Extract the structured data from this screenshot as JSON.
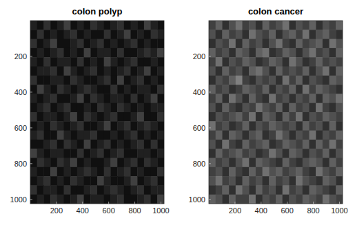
{
  "chart_data": [
    {
      "type": "heatmap",
      "title": "colon polyp",
      "color": "#ffffff",
      "grid": false,
      "xlim": [
        0,
        1024
      ],
      "ylim": [
        0,
        1024
      ],
      "xticks": [
        200,
        400,
        600,
        800,
        1000
      ],
      "yticks": [
        200,
        400,
        600,
        800,
        1000
      ],
      "value_range": [
        0,
        16
      ],
      "cells": [
        [
          2,
          1,
          3,
          1,
          2,
          4,
          1,
          2,
          1,
          3,
          2,
          1,
          2,
          3,
          1,
          2,
          1,
          4,
          2,
          1
        ],
        [
          1,
          3,
          1,
          2,
          1,
          2,
          3,
          1,
          2,
          1,
          1,
          3,
          1,
          2,
          4,
          1,
          2,
          1,
          3,
          2
        ],
        [
          3,
          1,
          2,
          4,
          1,
          1,
          2,
          3,
          1,
          2,
          3,
          1,
          2,
          1,
          2,
          3,
          1,
          2,
          1,
          1
        ],
        [
          1,
          2,
          1,
          2,
          3,
          1,
          2,
          1,
          4,
          1,
          2,
          2,
          1,
          3,
          1,
          1,
          2,
          3,
          2,
          4
        ],
        [
          2,
          1,
          3,
          1,
          2,
          2,
          1,
          3,
          1,
          2,
          1,
          4,
          2,
          1,
          2,
          3,
          1,
          1,
          2,
          1
        ],
        [
          1,
          2,
          2,
          3,
          1,
          4,
          2,
          1,
          2,
          3,
          1,
          2,
          1,
          2,
          3,
          1,
          2,
          4,
          1,
          2
        ],
        [
          3,
          1,
          1,
          2,
          2,
          1,
          3,
          2,
          1,
          1,
          2,
          3,
          1,
          4,
          1,
          2,
          3,
          1,
          2,
          1
        ],
        [
          1,
          4,
          2,
          1,
          3,
          2,
          1,
          2,
          3,
          2,
          1,
          1,
          3,
          1,
          2,
          1,
          2,
          2,
          1,
          3
        ],
        [
          2,
          1,
          2,
          3,
          1,
          1,
          2,
          4,
          1,
          3,
          2,
          1,
          2,
          2,
          1,
          3,
          1,
          2,
          4,
          1
        ],
        [
          1,
          2,
          3,
          1,
          2,
          3,
          1,
          1,
          2,
          1,
          3,
          2,
          1,
          3,
          2,
          1,
          2,
          1,
          2,
          2
        ],
        [
          3,
          1,
          2,
          2,
          1,
          2,
          4,
          1,
          3,
          2,
          1,
          2,
          3,
          1,
          1,
          2,
          4,
          1,
          1,
          3
        ],
        [
          1,
          2,
          1,
          3,
          2,
          1,
          2,
          3,
          1,
          1,
          2,
          4,
          1,
          2,
          3,
          1,
          2,
          3,
          2,
          1
        ],
        [
          2,
          3,
          1,
          1,
          4,
          2,
          1,
          2,
          2,
          3,
          1,
          1,
          2,
          1,
          2,
          3,
          1,
          2,
          1,
          2
        ],
        [
          1,
          1,
          2,
          3,
          1,
          3,
          2,
          1,
          4,
          1,
          2,
          3,
          1,
          2,
          1,
          2,
          3,
          1,
          3,
          1
        ],
        [
          4,
          2,
          1,
          2,
          2,
          1,
          1,
          3,
          1,
          2,
          3,
          1,
          2,
          3,
          1,
          1,
          2,
          2,
          1,
          2
        ],
        [
          1,
          3,
          2,
          1,
          3,
          2,
          4,
          1,
          2,
          1,
          1,
          2,
          4,
          1,
          2,
          3,
          1,
          3,
          2,
          1
        ],
        [
          2,
          1,
          1,
          4,
          1,
          2,
          1,
          2,
          3,
          2,
          1,
          3,
          1,
          2,
          3,
          1,
          2,
          1,
          1,
          3
        ],
        [
          1,
          2,
          3,
          1,
          2,
          1,
          3,
          2,
          1,
          1,
          4,
          2,
          1,
          1,
          2,
          4,
          1,
          2,
          3,
          1
        ],
        [
          3,
          1,
          2,
          2,
          1,
          3,
          1,
          1,
          2,
          3,
          1,
          2,
          3,
          2,
          1,
          2,
          3,
          1,
          2,
          2
        ],
        [
          1,
          2,
          1,
          3,
          2,
          1,
          2,
          4,
          1,
          2,
          2,
          1,
          2,
          3,
          1,
          1,
          2,
          3,
          1,
          4
        ]
      ]
    },
    {
      "type": "heatmap",
      "title": "colon cancer",
      "color": "#ffffff",
      "grid": false,
      "xlim": [
        0,
        1024
      ],
      "ylim": [
        0,
        1024
      ],
      "xticks": [
        200,
        400,
        600,
        800,
        1000
      ],
      "yticks": [
        200,
        400,
        600,
        800,
        1000
      ],
      "value_range": [
        0,
        16
      ],
      "cells": [
        [
          4,
          6,
          3,
          5,
          7,
          4,
          5,
          3,
          6,
          4,
          5,
          7,
          3,
          5,
          4,
          6,
          3,
          5,
          4,
          6
        ],
        [
          5,
          3,
          6,
          4,
          5,
          3,
          7,
          5,
          4,
          6,
          3,
          5,
          6,
          4,
          7,
          3,
          5,
          6,
          4,
          3
        ],
        [
          3,
          5,
          4,
          7,
          3,
          6,
          4,
          5,
          3,
          5,
          7,
          4,
          3,
          6,
          4,
          5,
          6,
          3,
          7,
          5
        ],
        [
          6,
          4,
          5,
          3,
          6,
          5,
          3,
          6,
          7,
          3,
          4,
          6,
          5,
          3,
          5,
          7,
          4,
          5,
          3,
          6
        ],
        [
          4,
          7,
          3,
          5,
          4,
          6,
          5,
          3,
          4,
          6,
          5,
          3,
          7,
          5,
          3,
          4,
          6,
          4,
          5,
          4
        ],
        [
          5,
          3,
          6,
          4,
          5,
          3,
          6,
          7,
          5,
          3,
          6,
          4,
          5,
          4,
          6,
          3,
          5,
          7,
          3,
          6
        ],
        [
          3,
          5,
          4,
          6,
          8,
          4,
          3,
          5,
          4,
          5,
          3,
          7,
          4,
          6,
          3,
          5,
          4,
          3,
          6,
          5
        ],
        [
          6,
          4,
          5,
          3,
          4,
          6,
          5,
          4,
          6,
          3,
          5,
          4,
          6,
          3,
          7,
          4,
          6,
          5,
          4,
          3
        ],
        [
          4,
          6,
          3,
          7,
          5,
          3,
          6,
          4,
          3,
          7,
          4,
          5,
          3,
          5,
          4,
          6,
          3,
          6,
          5,
          7
        ],
        [
          5,
          3,
          6,
          4,
          3,
          5,
          4,
          7,
          5,
          4,
          6,
          3,
          6,
          4,
          5,
          3,
          7,
          4,
          3,
          5
        ],
        [
          3,
          5,
          4,
          5,
          6,
          4,
          7,
          3,
          6,
          5,
          3,
          6,
          4,
          7,
          3,
          5,
          4,
          6,
          5,
          4
        ],
        [
          7,
          4,
          5,
          3,
          4,
          6,
          3,
          5,
          4,
          6,
          5,
          4,
          5,
          3,
          6,
          4,
          5,
          3,
          6,
          3
        ],
        [
          4,
          6,
          3,
          6,
          5,
          3,
          5,
          6,
          3,
          4,
          7,
          5,
          3,
          5,
          4,
          7,
          3,
          5,
          4,
          6
        ],
        [
          5,
          3,
          7,
          4,
          3,
          6,
          4,
          5,
          6,
          3,
          4,
          6,
          5,
          4,
          6,
          3,
          6,
          4,
          7,
          4
        ],
        [
          3,
          6,
          4,
          5,
          6,
          4,
          5,
          3,
          4,
          7,
          5,
          3,
          6,
          5,
          3,
          5,
          4,
          6,
          3,
          5
        ],
        [
          6,
          4,
          5,
          3,
          5,
          7,
          3,
          6,
          5,
          4,
          3,
          6,
          4,
          3,
          5,
          6,
          5,
          3,
          6,
          4
        ],
        [
          4,
          5,
          3,
          6,
          4,
          3,
          6,
          4,
          7,
          5,
          6,
          4,
          5,
          6,
          4,
          3,
          7,
          5,
          4,
          6
        ],
        [
          5,
          7,
          4,
          5,
          3,
          6,
          4,
          5,
          3,
          6,
          4,
          5,
          3,
          7,
          5,
          4,
          3,
          6,
          5,
          3
        ],
        [
          3,
          4,
          6,
          3,
          7,
          5,
          3,
          6,
          4,
          5,
          3,
          7,
          4,
          5,
          3,
          6,
          5,
          4,
          3,
          6
        ],
        [
          6,
          5,
          3,
          6,
          4,
          4,
          7,
          3,
          5,
          4,
          6,
          3,
          5,
          4,
          6,
          5,
          4,
          7,
          5,
          4
        ]
      ]
    }
  ]
}
